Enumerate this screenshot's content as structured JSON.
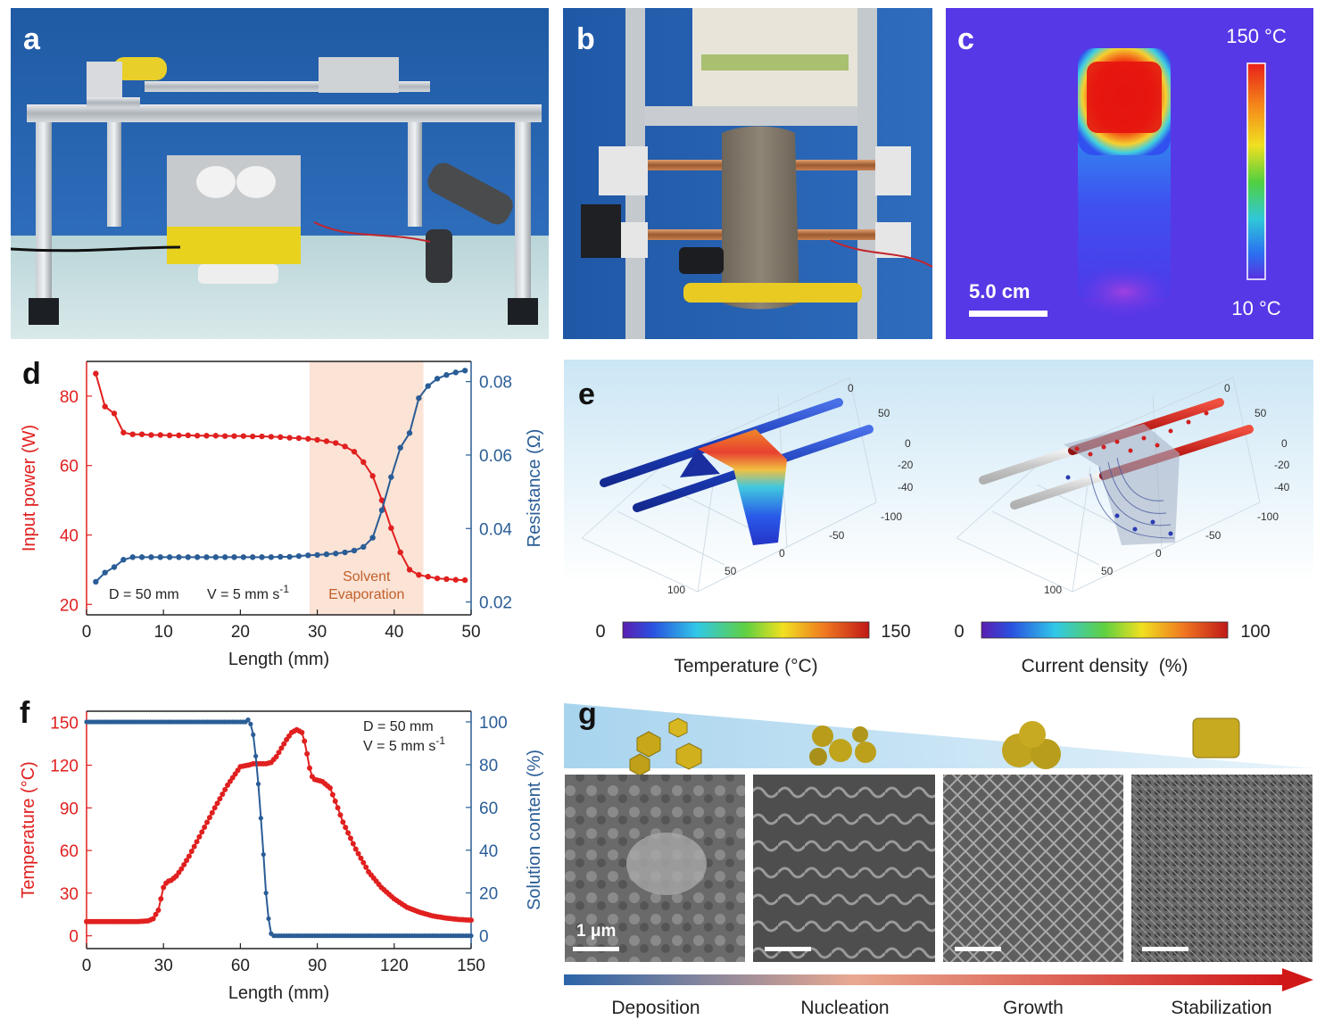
{
  "panels": {
    "a": {
      "label": "a"
    },
    "b": {
      "label": "b"
    },
    "c": {
      "label": "c",
      "scale_top": "150 °C",
      "scale_bottom": "10 °C",
      "scalebar": "5.0 cm"
    },
    "d": {
      "label": "d"
    },
    "e": {
      "label": "e",
      "cb_left": {
        "min": "0",
        "max": "150",
        "title": "Temperature (°C)"
      },
      "cb_right": {
        "min": "0",
        "max": "100",
        "title": "Current density  (%)"
      },
      "axis_ticks_right_top": [
        "0",
        "50"
      ],
      "axis_ticks_z": [
        "0",
        "-20",
        "-40"
      ],
      "axis_ticks_y": [
        "-100",
        "-50",
        "0"
      ],
      "axis_ticks_x": [
        "50",
        "100"
      ]
    },
    "f": {
      "label": "f"
    },
    "g": {
      "label": "g",
      "scalebar": "1 μm",
      "stages": [
        "Deposition",
        "Nucleation",
        "Growth",
        "Stabilization"
      ]
    }
  },
  "colors": {
    "red": "#e0201f",
    "blue": "#2a5d96",
    "shade": "#fbe3d6",
    "solvent_text": "#c0602a"
  },
  "chart_data": [
    {
      "type": "line",
      "panel": "d",
      "xlabel": "Length (mm)",
      "ylabel": "Input power (W)",
      "y2label": "Resistance (Ω)",
      "xlim": [
        0,
        50
      ],
      "ylim": [
        17,
        90
      ],
      "y2lim": [
        0.0165,
        0.0855
      ],
      "xticks": [
        0,
        10,
        20,
        30,
        40,
        50
      ],
      "yticks": [
        20,
        40,
        60,
        80
      ],
      "y2ticks": [
        "0.02",
        "0.04",
        "0.06",
        "0.08"
      ],
      "annotation_left": "D = 50 mm",
      "annotation_right": "V = 5 mm s-1",
      "shaded_region": {
        "x": [
          29,
          43.8
        ],
        "label_line1": "Solvent",
        "label_line2": "Evaporation"
      },
      "series": [
        {
          "axis": "left",
          "x": [
            1.2,
            2.4,
            3.6,
            4.8,
            6,
            7.2,
            8.4,
            9.6,
            10.8,
            12,
            13.2,
            14.4,
            15.6,
            16.8,
            18,
            19.2,
            20.4,
            21.6,
            22.8,
            24,
            25.2,
            26.4,
            27.6,
            28.8,
            30,
            31.2,
            32.4,
            33.6,
            34.8,
            36,
            37.2,
            38.4,
            39.6,
            40.8,
            42,
            43.2,
            44.4,
            45.6,
            46.8,
            48,
            49.2
          ],
          "y": [
            86.5,
            77,
            75,
            69.5,
            69,
            69,
            68.8,
            68.8,
            68.7,
            68.7,
            68.7,
            68.6,
            68.6,
            68.6,
            68.5,
            68.5,
            68.5,
            68.4,
            68.4,
            68.3,
            68.2,
            68,
            67.9,
            67.7,
            67.4,
            67,
            66.5,
            65.5,
            64,
            61,
            57,
            50,
            42,
            35,
            30,
            28.5,
            28,
            27.5,
            27.3,
            27.1,
            27
          ]
        },
        {
          "axis": "right",
          "x": [
            1.2,
            2.4,
            3.6,
            4.8,
            6,
            7.2,
            8.4,
            9.6,
            10.8,
            12,
            13.2,
            14.4,
            15.6,
            16.8,
            18,
            19.2,
            20.4,
            21.6,
            22.8,
            24,
            25.2,
            26.4,
            27.6,
            28.8,
            30,
            31.2,
            32.4,
            33.6,
            34.8,
            36,
            37.2,
            38.4,
            39.6,
            40.8,
            42,
            43.2,
            44.4,
            45.6,
            46.8,
            48,
            49.2
          ],
          "y": [
            0.0255,
            0.028,
            0.0295,
            0.0315,
            0.0322,
            0.0322,
            0.0322,
            0.0322,
            0.0322,
            0.0322,
            0.0322,
            0.0322,
            0.0322,
            0.0322,
            0.0322,
            0.0322,
            0.0322,
            0.0322,
            0.0322,
            0.0322,
            0.0323,
            0.0323,
            0.0325,
            0.0327,
            0.0328,
            0.033,
            0.0332,
            0.0335,
            0.034,
            0.035,
            0.0375,
            0.045,
            0.054,
            0.062,
            0.066,
            0.0755,
            0.0788,
            0.0808,
            0.0818,
            0.0825,
            0.083
          ]
        }
      ]
    },
    {
      "type": "line",
      "panel": "f",
      "xlabel": "Length (mm)",
      "ylabel": "Temperature (°C)",
      "y2label": "Solution content (%)",
      "xlim": [
        0,
        150
      ],
      "ylim": [
        -9,
        158
      ],
      "y2lim": [
        -6,
        105
      ],
      "xticks": [
        0,
        30,
        60,
        90,
        120,
        150
      ],
      "yticks": [
        0,
        30,
        60,
        90,
        120,
        150
      ],
      "y2ticks": [
        0,
        20,
        40,
        60,
        80,
        100
      ],
      "annotation_line1": "D = 50 mm",
      "annotation_line2": "V = 5 mm s-1",
      "series": [
        {
          "axis": "left",
          "x": [
            0,
            5,
            10,
            15,
            20,
            24,
            26,
            28,
            29,
            30,
            31,
            32,
            33,
            35,
            37,
            40,
            45,
            50,
            55,
            60,
            63,
            65,
            68,
            70,
            72,
            74,
            76,
            78,
            80,
            82,
            84,
            85,
            86,
            87,
            88,
            89,
            90,
            92,
            95,
            98,
            100,
            105,
            110,
            115,
            120,
            125,
            130,
            135,
            140,
            145,
            150
          ],
          "y": [
            10,
            10,
            10,
            10,
            10,
            10.5,
            12,
            18,
            26,
            34,
            37,
            38.5,
            39,
            42,
            47,
            56,
            73,
            90,
            106,
            119,
            120,
            121,
            121,
            121,
            122,
            126,
            132,
            138,
            143,
            145,
            143,
            137,
            128,
            118,
            112,
            110,
            109.5,
            108.5,
            104,
            90,
            80,
            61,
            45,
            34,
            26,
            20,
            16.5,
            14,
            12.5,
            11.5,
            11
          ]
        },
        {
          "axis": "right",
          "x": [
            0,
            10,
            20,
            30,
            40,
            50,
            60,
            62,
            63,
            64,
            65,
            66,
            67,
            68,
            69,
            70,
            71,
            72,
            73,
            75,
            80,
            90,
            100,
            110,
            120,
            130,
            140,
            150
          ],
          "y": [
            100,
            100,
            100,
            100,
            100,
            100,
            100,
            100,
            101,
            99,
            94,
            84,
            71,
            55,
            38,
            20,
            8,
            1,
            0,
            0,
            0,
            0,
            0,
            0,
            0,
            0,
            0,
            0
          ]
        }
      ]
    }
  ]
}
